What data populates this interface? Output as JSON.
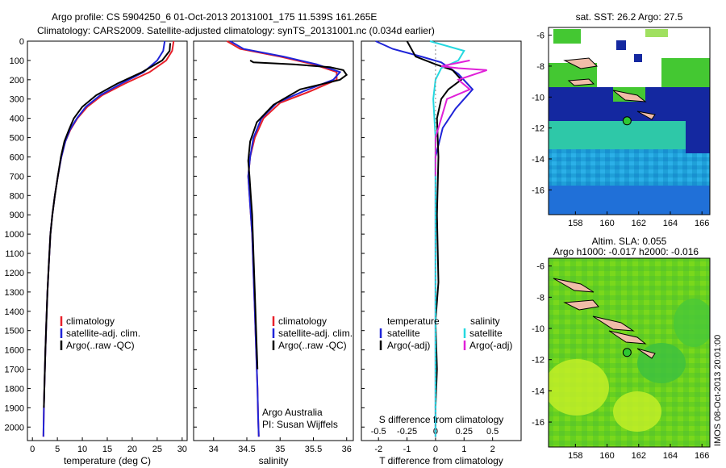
{
  "title_line1": "Argo profile: CS 5904250_6 01-Oct-2013 20131001_175 11.539S 161.265E",
  "title_line2": "Climatology: CARS2009. Satellite-adjusted climatology: synTS_20131001.nc (0.034d earlier)",
  "colors": {
    "climatology": "#e8202a",
    "satellite": "#1f24d8",
    "argo": "#000000",
    "sat_salinity": "#25d8e0",
    "argo_salinity_adj": "#e020d8"
  },
  "chart_data": [
    {
      "type": "line",
      "id": "temperature",
      "xlabel": "temperature (deg C)",
      "ylabel": "",
      "xlim": [
        -1,
        31
      ],
      "ylim": [
        2070,
        0
      ],
      "xticks": [
        0,
        5,
        10,
        15,
        20,
        25,
        30
      ],
      "yticks": [
        0,
        100,
        200,
        300,
        400,
        500,
        600,
        700,
        800,
        900,
        1000,
        1100,
        1200,
        1300,
        1400,
        1500,
        1600,
        1700,
        1800,
        1900,
        2000
      ],
      "legend": [
        "climatology",
        "satellite-adj. clim.",
        "Argo(..raw -QC)"
      ],
      "series": [
        {
          "name": "climatology",
          "x": [
            28.3,
            28.0,
            26.8,
            23.5,
            18.5,
            14.0,
            11.0,
            9.0,
            7.6,
            6.6,
            5.8,
            5.1,
            4.5,
            4.0,
            3.6,
            3.3,
            3.0,
            2.8,
            2.6,
            2.45,
            2.3,
            2.2
          ],
          "y": [
            0,
            50,
            100,
            160,
            220,
            280,
            340,
            400,
            460,
            520,
            600,
            700,
            800,
            900,
            1000,
            1150,
            1300,
            1450,
            1600,
            1750,
            1900,
            2050
          ]
        },
        {
          "name": "satellite-adj. clim.",
          "x": [
            26.5,
            26.2,
            25.0,
            22.3,
            17.8,
            13.6,
            10.7,
            8.9,
            7.5,
            6.6,
            5.8,
            5.1,
            4.5,
            4.0,
            3.6,
            3.3,
            3.0,
            2.8,
            2.6,
            2.45,
            2.3,
            2.2
          ],
          "y": [
            0,
            50,
            100,
            160,
            220,
            280,
            340,
            400,
            460,
            520,
            600,
            700,
            800,
            900,
            1000,
            1150,
            1300,
            1450,
            1600,
            1750,
            1900,
            2050
          ]
        },
        {
          "name": "Argo(..raw -QC)",
          "x": [
            27.6,
            27.5,
            26.0,
            22.0,
            17.0,
            12.8,
            10.0,
            8.3,
            7.3,
            6.4,
            5.7,
            5.1,
            4.5,
            4.0,
            3.6,
            3.3,
            3.0,
            2.8,
            2.6,
            2.45,
            2.3
          ],
          "y": [
            10,
            50,
            100,
            160,
            220,
            280,
            340,
            400,
            460,
            520,
            600,
            700,
            800,
            900,
            1000,
            1150,
            1300,
            1450,
            1600,
            1750,
            1900
          ]
        }
      ]
    },
    {
      "type": "line",
      "id": "salinity",
      "xlabel": "salinity",
      "xlim": [
        33.7,
        36.1
      ],
      "ylim": [
        2070,
        0
      ],
      "xticks": [
        34,
        34.5,
        35,
        35.5,
        36
      ],
      "legend": [
        "climatology",
        "satellite-adj. clim.",
        "Argo(..raw -QC)"
      ],
      "annotation": [
        "Argo Australia",
        "PI: Susan Wijffels"
      ],
      "series": [
        {
          "name": "climatology",
          "x": [
            34.2,
            34.4,
            35.0,
            35.5,
            35.85,
            35.85,
            35.45,
            35.0,
            34.75,
            34.62,
            34.55,
            34.52,
            34.54,
            34.56,
            34.58,
            34.6,
            34.62,
            34.64,
            34.66,
            34.67,
            34.68
          ],
          "y": [
            0,
            40,
            80,
            120,
            160,
            200,
            260,
            320,
            400,
            500,
            600,
            700,
            800,
            900,
            1000,
            1200,
            1400,
            1600,
            1800,
            1950,
            2050
          ]
        },
        {
          "name": "satellite-adj. clim.",
          "x": [
            34.25,
            34.45,
            35.05,
            35.55,
            35.9,
            35.8,
            35.35,
            34.95,
            34.72,
            34.6,
            34.55,
            34.52,
            34.54,
            34.56,
            34.58,
            34.6,
            34.62,
            34.64,
            34.66,
            34.67,
            34.68
          ],
          "y": [
            0,
            40,
            80,
            120,
            160,
            200,
            260,
            320,
            400,
            500,
            600,
            700,
            800,
            900,
            1000,
            1200,
            1400,
            1600,
            1800,
            1950,
            2050
          ]
        },
        {
          "name": "Argo(..raw -QC)",
          "x": [
            34.55,
            34.6,
            35.2,
            35.75,
            35.95,
            36.0,
            35.9,
            35.3,
            34.9,
            34.65,
            34.55,
            34.52,
            34.54,
            34.56,
            34.58,
            34.6,
            34.62,
            34.64,
            34.66
          ],
          "y": [
            100,
            110,
            120,
            135,
            150,
            175,
            200,
            250,
            330,
            420,
            520,
            620,
            700,
            800,
            900,
            1100,
            1300,
            1500,
            1700
          ]
        }
      ]
    },
    {
      "type": "line",
      "id": "differences",
      "xlabel": "T difference from climatology",
      "x2label": "S difference from climatology",
      "xlim": [
        -2.6,
        3.0
      ],
      "ylim": [
        2070,
        0
      ],
      "xticks": [
        -2,
        -1,
        0,
        1,
        2
      ],
      "x2ticks": [
        "-0.5",
        "-0.25",
        "0",
        "0.25",
        "0.5"
      ],
      "legend_titles": [
        "temperature",
        "salinity"
      ],
      "legend": [
        "satellite",
        "Argo(-adj)",
        "satellite",
        "Argo(-adj)"
      ],
      "series": [
        {
          "name": "T satellite",
          "x": [
            -2.1,
            -1.5,
            -0.5,
            0.2,
            0.8,
            1.3,
            0.7,
            0.25,
            0.0,
            0.0,
            0.0,
            0.0
          ],
          "y": [
            0,
            40,
            80,
            110,
            170,
            250,
            350,
            450,
            600,
            800,
            1200,
            2050
          ]
        },
        {
          "name": "T Argo(-adj)",
          "x": [
            -1.0,
            -0.7,
            0.0,
            0.6,
            0.9,
            0.45,
            0.2,
            0.05,
            0.1,
            0.05,
            0.1,
            0.0,
            0.05,
            0.0
          ],
          "y": [
            0,
            80,
            120,
            150,
            200,
            250,
            300,
            400,
            600,
            900,
            1250,
            1450,
            1700,
            1900
          ]
        },
        {
          "name": "S satellite",
          "x": [
            -0.05,
            0.25,
            0.2,
            0.05,
            0.0,
            -0.02,
            0.0,
            0.0,
            0.0
          ],
          "y": [
            0,
            50,
            100,
            140,
            200,
            300,
            500,
            1000,
            2050
          ]
        },
        {
          "name": "S Argo(-adj)",
          "x": [
            0.3,
            0.05,
            0.2,
            0.45,
            0.2,
            0.3,
            0.1,
            0.05,
            0.0,
            0.0
          ],
          "y": [
            100,
            130,
            140,
            150,
            200,
            250,
            300,
            400,
            500,
            700
          ]
        }
      ]
    },
    {
      "type": "heatmap",
      "id": "sst_map",
      "title": "sat. SST: 26.2  Argo: 27.5",
      "xticks": [
        158,
        160,
        162,
        164,
        166
      ],
      "yticks": [
        -6,
        -8,
        -10,
        -12,
        -14,
        -16
      ],
      "marker": {
        "lon": 161.265,
        "lat": -11.539
      }
    },
    {
      "type": "heatmap",
      "id": "sla_map",
      "title": "Altim. SLA: 0.055",
      "subtitle": "Argo h1000: -0.017 h2000: -0.016",
      "xticks": [
        158,
        160,
        162,
        164,
        166
      ],
      "yticks": [
        -6,
        -8,
        -10,
        -12,
        -14,
        -16
      ],
      "marker": {
        "lon": 161.265,
        "lat": -11.539
      }
    }
  ],
  "stamp": "IMOS 08-Oct-2013 20:01:00"
}
